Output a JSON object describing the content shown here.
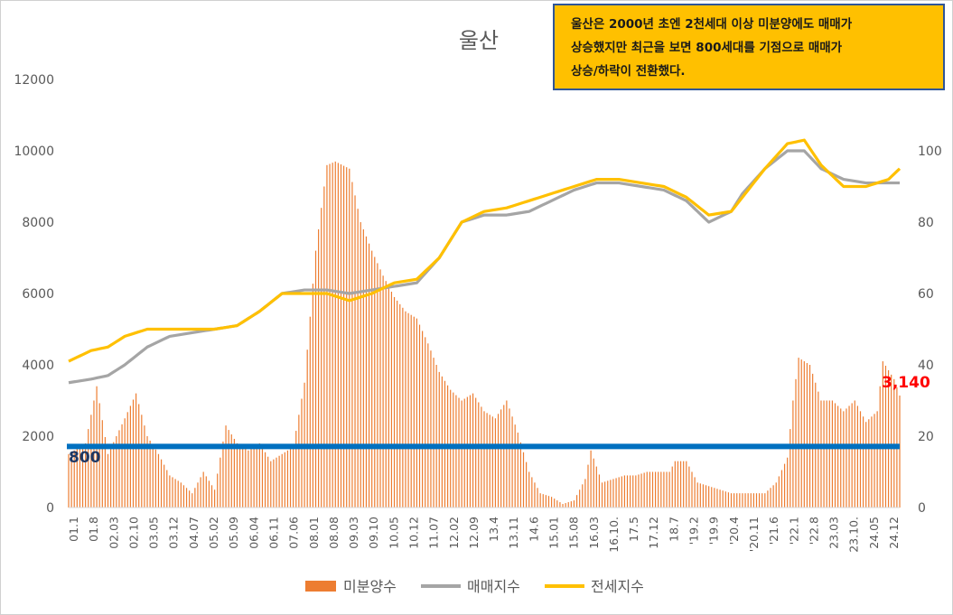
{
  "chart_data": {
    "type": "bar",
    "title": "울산",
    "x_tick_labels": [
      "01.1",
      "01.8",
      "02.03",
      "02.10",
      "03.05",
      "03.12",
      "04.07",
      "05.02",
      "05.09",
      "06.04",
      "06.11",
      "07.06",
      "08.01",
      "08.08",
      "09.03",
      "09.10",
      "10.05",
      "10.12",
      "11.07",
      "12.02",
      "12.09",
      "13.4",
      "13.11",
      "14.6",
      "15.01",
      "15.08",
      "16.03",
      "16.10.",
      "17.5",
      "17.12",
      "18.7",
      "'19.2",
      "'19.9",
      "'20.4",
      "'20.11",
      "'21.6",
      "'22.1",
      "'22.8",
      "23.03",
      "23.10.",
      "24.05",
      "24.12"
    ],
    "y_left": {
      "ticks": [
        0,
        2000,
        4000,
        6000,
        8000,
        10000,
        12000
      ],
      "range": [
        0,
        12000
      ]
    },
    "y_right": {
      "ticks": [
        0,
        20,
        40,
        60,
        80,
        100
      ],
      "range": [
        0,
        120
      ]
    },
    "series": [
      {
        "name": "미분양수",
        "type": "bar",
        "axis": "left",
        "color": "#ed7d31",
        "anchors": [
          [
            0,
            1500
          ],
          [
            6,
            1800
          ],
          [
            10,
            3400
          ],
          [
            14,
            1500
          ],
          [
            20,
            2500
          ],
          [
            24,
            3200
          ],
          [
            28,
            2000
          ],
          [
            32,
            1500
          ],
          [
            36,
            900
          ],
          [
            40,
            700
          ],
          [
            44,
            400
          ],
          [
            48,
            1000
          ],
          [
            52,
            500
          ],
          [
            56,
            2300
          ],
          [
            60,
            1800
          ],
          [
            64,
            1600
          ],
          [
            68,
            1800
          ],
          [
            72,
            1300
          ],
          [
            76,
            1500
          ],
          [
            80,
            1700
          ],
          [
            84,
            3500
          ],
          [
            88,
            7200
          ],
          [
            92,
            9600
          ],
          [
            95,
            9700
          ],
          [
            100,
            9500
          ],
          [
            104,
            8000
          ],
          [
            108,
            7200
          ],
          [
            112,
            6500
          ],
          [
            116,
            5900
          ],
          [
            120,
            5500
          ],
          [
            124,
            5300
          ],
          [
            128,
            4600
          ],
          [
            132,
            3800
          ],
          [
            136,
            3300
          ],
          [
            140,
            3000
          ],
          [
            144,
            3200
          ],
          [
            148,
            2700
          ],
          [
            152,
            2500
          ],
          [
            156,
            3000
          ],
          [
            160,
            2100
          ],
          [
            164,
            1000
          ],
          [
            168,
            400
          ],
          [
            172,
            300
          ],
          [
            176,
            100
          ],
          [
            180,
            200
          ],
          [
            184,
            800
          ],
          [
            186,
            1600
          ],
          [
            190,
            700
          ],
          [
            194,
            800
          ],
          [
            198,
            900
          ],
          [
            202,
            900
          ],
          [
            206,
            1000
          ],
          [
            210,
            1000
          ],
          [
            214,
            1000
          ],
          [
            216,
            1300
          ],
          [
            220,
            1300
          ],
          [
            224,
            700
          ],
          [
            228,
            600
          ],
          [
            232,
            500
          ],
          [
            236,
            400
          ],
          [
            240,
            400
          ],
          [
            244,
            400
          ],
          [
            248,
            400
          ],
          [
            252,
            700
          ],
          [
            256,
            1400
          ],
          [
            258,
            3000
          ],
          [
            260,
            4200
          ],
          [
            264,
            4000
          ],
          [
            268,
            3000
          ],
          [
            272,
            3000
          ],
          [
            276,
            2700
          ],
          [
            280,
            3000
          ],
          [
            284,
            2400
          ],
          [
            288,
            2700
          ],
          [
            290,
            4100
          ],
          [
            294,
            3600
          ],
          [
            296,
            3140
          ]
        ]
      },
      {
        "name": "매매지수",
        "type": "line",
        "axis": "right",
        "color": "#a5a5a5",
        "anchors": [
          [
            0,
            35
          ],
          [
            8,
            36
          ],
          [
            14,
            37
          ],
          [
            20,
            40
          ],
          [
            28,
            45
          ],
          [
            36,
            48
          ],
          [
            44,
            49
          ],
          [
            52,
            50
          ],
          [
            60,
            51
          ],
          [
            68,
            55
          ],
          [
            76,
            60
          ],
          [
            84,
            61
          ],
          [
            92,
            61
          ],
          [
            100,
            60
          ],
          [
            108,
            61
          ],
          [
            116,
            62
          ],
          [
            124,
            63
          ],
          [
            132,
            70
          ],
          [
            140,
            80
          ],
          [
            148,
            82
          ],
          [
            156,
            82
          ],
          [
            164,
            83
          ],
          [
            172,
            86
          ],
          [
            180,
            89
          ],
          [
            188,
            91
          ],
          [
            196,
            91
          ],
          [
            204,
            90
          ],
          [
            212,
            89
          ],
          [
            220,
            86
          ],
          [
            228,
            80
          ],
          [
            236,
            83
          ],
          [
            240,
            88
          ],
          [
            248,
            95
          ],
          [
            256,
            100
          ],
          [
            262,
            100
          ],
          [
            268,
            95
          ],
          [
            276,
            92
          ],
          [
            284,
            91
          ],
          [
            292,
            91
          ],
          [
            296,
            91
          ]
        ]
      },
      {
        "name": "전세지수",
        "type": "line",
        "axis": "right",
        "color": "#ffc000",
        "anchors": [
          [
            0,
            41
          ],
          [
            8,
            44
          ],
          [
            14,
            45
          ],
          [
            20,
            48
          ],
          [
            28,
            50
          ],
          [
            36,
            50
          ],
          [
            44,
            50
          ],
          [
            52,
            50
          ],
          [
            60,
            51
          ],
          [
            68,
            55
          ],
          [
            76,
            60
          ],
          [
            84,
            60
          ],
          [
            92,
            60
          ],
          [
            100,
            58
          ],
          [
            108,
            60
          ],
          [
            116,
            63
          ],
          [
            124,
            64
          ],
          [
            132,
            70
          ],
          [
            140,
            80
          ],
          [
            148,
            83
          ],
          [
            156,
            84
          ],
          [
            164,
            86
          ],
          [
            172,
            88
          ],
          [
            180,
            90
          ],
          [
            188,
            92
          ],
          [
            196,
            92
          ],
          [
            204,
            91
          ],
          [
            212,
            90
          ],
          [
            220,
            87
          ],
          [
            228,
            82
          ],
          [
            236,
            83
          ],
          [
            240,
            87
          ],
          [
            248,
            95
          ],
          [
            256,
            102
          ],
          [
            262,
            103
          ],
          [
            268,
            96
          ],
          [
            276,
            90
          ],
          [
            284,
            90
          ],
          [
            292,
            92
          ],
          [
            296,
            95
          ]
        ]
      }
    ],
    "reference_line": {
      "value": 800,
      "label": "800",
      "color": "#0070c0"
    },
    "last_label": {
      "text": "3,140",
      "color": "#ff0000"
    },
    "legend": {
      "position": "bottom",
      "entries": [
        "미분양수",
        "매매지수",
        "전세지수"
      ]
    },
    "grid": false
  },
  "annotation": {
    "lines": [
      "울산은 2000년 초엔 2천세대 이상 미분양에도 매매가",
      "상승했지만 최근을 보면 800세대를 기점으로 매매가",
      "상승/하락이 전환했다."
    ],
    "background": "#ffc000",
    "border": "#2f5597"
  }
}
